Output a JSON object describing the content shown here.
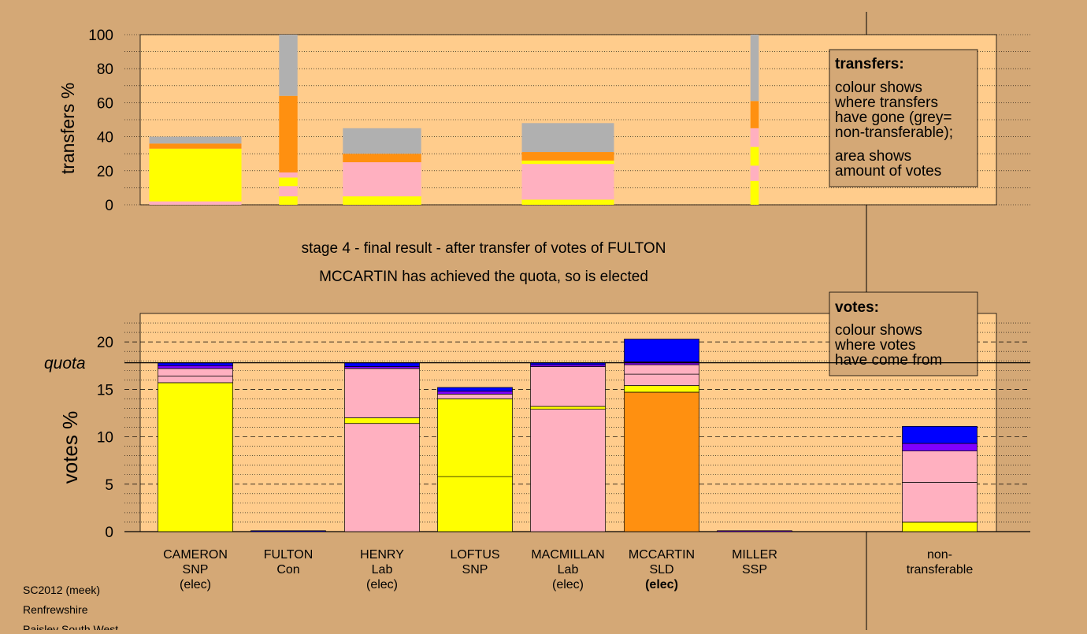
{
  "colors": {
    "page_bg": "#d4a876",
    "plot_bg": "#ffcc8c",
    "SNP": "#ffff00",
    "Lab": "#ffb0c0",
    "SLD": "#ff9010",
    "SSP": "#8000ff",
    "Con": "#0000ff",
    "non_transferable": "#b0b0b0"
  },
  "heading": {
    "line1": "stage 4 - final result - after transfer of votes of FULTON",
    "line2": "MCCARTIN has achieved the quota, so is elected"
  },
  "footer": [
    "SC2012 (meek)",
    "Renfrewshire",
    "Paisley South West"
  ],
  "transfers_legend": {
    "title": "transfers:",
    "lines": [
      "colour shows",
      "where transfers",
      "have gone (grey=",
      "non-transferable);",
      "area shows",
      "amount of votes"
    ]
  },
  "votes_legend": {
    "title": "votes:",
    "lines": [
      "colour shows",
      "where votes",
      "have come from"
    ]
  },
  "chart_data": [
    {
      "type": "bar",
      "ylabel": "transfers %",
      "ylim": [
        0,
        100
      ],
      "yticks": [
        0,
        20,
        40,
        60,
        80,
        100
      ],
      "grid": "dotted",
      "columns": [
        {
          "candidate": "CAMERON",
          "party": "SNP",
          "width_share": 1.0,
          "segments": [
            {
              "party": "Lab",
              "value": 2
            },
            {
              "party": "SNP",
              "value": 31
            },
            {
              "party": "SLD",
              "value": 3
            },
            {
              "party": "non_transferable",
              "value": 4
            }
          ]
        },
        {
          "candidate": "FULTON",
          "party": "Con",
          "width_share": 0.2,
          "segments": [
            {
              "party": "SNP",
              "value": 5
            },
            {
              "party": "Lab",
              "value": 6
            },
            {
              "party": "SNP",
              "value": 5
            },
            {
              "party": "Lab",
              "value": 3
            },
            {
              "party": "SLD",
              "value": 45
            },
            {
              "party": "non_transferable",
              "value": 36
            }
          ]
        },
        {
          "candidate": "HENRY",
          "party": "Lab",
          "width_share": 0.85,
          "segments": [
            {
              "party": "SNP",
              "value": 5
            },
            {
              "party": "Lab",
              "value": 20
            },
            {
              "party": "SLD",
              "value": 5
            },
            {
              "party": "non_transferable",
              "value": 15
            }
          ]
        },
        {
          "candidate": "LOFTUS",
          "party": "SNP",
          "width_share": 0,
          "segments": []
        },
        {
          "candidate": "MACMILLAN",
          "party": "Lab",
          "width_share": 1.0,
          "segments": [
            {
              "party": "SNP",
              "value": 3
            },
            {
              "party": "Lab",
              "value": 21
            },
            {
              "party": "SNP",
              "value": 2
            },
            {
              "party": "SLD",
              "value": 5
            },
            {
              "party": "non_transferable",
              "value": 17
            }
          ]
        },
        {
          "candidate": "MCCARTIN",
          "party": "SLD",
          "width_share": 0,
          "segments": []
        },
        {
          "candidate": "MILLER",
          "party": "SSP",
          "width_share": 0.09,
          "segments": [
            {
              "party": "SNP",
              "value": 14
            },
            {
              "party": "Lab",
              "value": 9
            },
            {
              "party": "SNP",
              "value": 11
            },
            {
              "party": "Lab",
              "value": 11
            },
            {
              "party": "SLD",
              "value": 16
            },
            {
              "party": "non_transferable",
              "value": 39
            }
          ]
        }
      ]
    },
    {
      "type": "bar",
      "stacked": true,
      "ylabel": "votes %",
      "ylim": [
        0,
        23
      ],
      "yticks": [
        0,
        5,
        10,
        15,
        20
      ],
      "quota": 17.8,
      "quota_label": "quota",
      "grid": "dotted",
      "categories": [
        "CAMERON",
        "FULTON",
        "HENRY",
        "LOFTUS",
        "MACMILLAN",
        "MCCARTIN",
        "MILLER",
        "non-transferable"
      ],
      "category_labels": [
        {
          "lines": [
            "CAMERON",
            "SNP",
            "(elec)"
          ],
          "bold_last": false
        },
        {
          "lines": [
            "FULTON",
            "Con"
          ],
          "bold_last": false
        },
        {
          "lines": [
            "HENRY",
            "Lab",
            "(elec)"
          ],
          "bold_last": false
        },
        {
          "lines": [
            "LOFTUS",
            "SNP"
          ],
          "bold_last": false
        },
        {
          "lines": [
            "MACMILLAN",
            "Lab",
            "(elec)"
          ],
          "bold_last": false
        },
        {
          "lines": [
            "MCCARTIN",
            "SLD",
            "(elec)"
          ],
          "bold_last": true
        },
        {
          "lines": [
            "MILLER",
            "SSP"
          ],
          "bold_last": false
        },
        {
          "lines": [
            "non-",
            "transferable"
          ],
          "bold_last": false
        }
      ],
      "stacks": [
        [
          {
            "party": "SNP",
            "value": 15.7
          },
          {
            "party": "Lab",
            "value": 0.7
          },
          {
            "party": "Lab",
            "value": 0.8
          },
          {
            "party": "SSP",
            "value": 0.3
          },
          {
            "party": "Con",
            "value": 0.3
          }
        ],
        [
          {
            "party": "Con",
            "value": 0.1
          }
        ],
        [
          {
            "party": "Lab",
            "value": 11.4
          },
          {
            "party": "SNP",
            "value": 0.6
          },
          {
            "party": "Lab",
            "value": 5.2
          },
          {
            "party": "SSP",
            "value": 0.2
          },
          {
            "party": "Con",
            "value": 0.4
          }
        ],
        [
          {
            "party": "SNP",
            "value": 5.8
          },
          {
            "party": "SNP",
            "value": 8.2
          },
          {
            "party": "Lab",
            "value": 0.5
          },
          {
            "party": "SSP",
            "value": 0.3
          },
          {
            "party": "Con",
            "value": 0.4
          }
        ],
        [
          {
            "party": "Lab",
            "value": 12.9
          },
          {
            "party": "SNP",
            "value": 0.3
          },
          {
            "party": "Lab",
            "value": 4.2
          },
          {
            "party": "SSP",
            "value": 0.2
          },
          {
            "party": "Con",
            "value": 0.2
          }
        ],
        [
          {
            "party": "SLD",
            "value": 14.7
          },
          {
            "party": "SNP",
            "value": 0.7
          },
          {
            "party": "Lab",
            "value": 1.2
          },
          {
            "party": "Lab",
            "value": 1.0
          },
          {
            "party": "SSP",
            "value": 0.3
          },
          {
            "party": "Con",
            "value": 2.4
          }
        ],
        [
          {
            "party": "SSP",
            "value": 0.1
          }
        ],
        [
          {
            "party": "SNP",
            "value": 1.0
          },
          {
            "party": "Lab",
            "value": 4.2
          },
          {
            "party": "Lab",
            "value": 3.3
          },
          {
            "party": "SSP",
            "value": 0.8
          },
          {
            "party": "Con",
            "value": 1.8
          }
        ]
      ]
    }
  ]
}
